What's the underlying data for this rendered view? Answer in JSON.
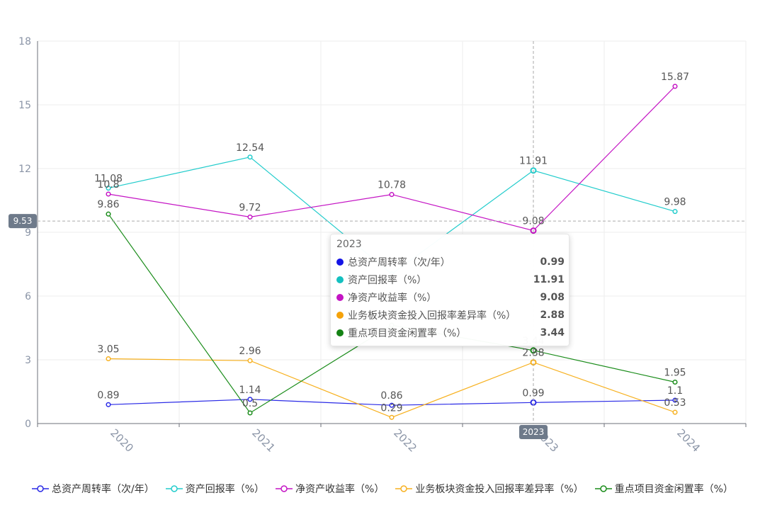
{
  "chart_data": {
    "type": "line",
    "x": [
      "2020",
      "2021",
      "2022",
      "2023",
      "2024"
    ],
    "ylim": [
      0,
      18
    ],
    "yticks": [
      0,
      3,
      6,
      9,
      12,
      15,
      18
    ],
    "grid": true,
    "legend_position": "bottom",
    "series": [
      {
        "name": "总资产周转率（次/年）",
        "color": "#2a2ae6",
        "values": [
          0.89,
          1.14,
          0.86,
          0.99,
          1.1
        ]
      },
      {
        "name": "资产回报率（%）",
        "color": "#22cccc",
        "values": [
          11.08,
          12.54,
          7.04,
          11.91,
          9.98
        ]
      },
      {
        "name": "净资产收益率（%）",
        "color": "#c414c4",
        "values": [
          10.8,
          9.72,
          10.78,
          9.08,
          15.87
        ]
      },
      {
        "name": "业务板块资金投入回报率差异率（%）",
        "color": "#f7b120",
        "values": [
          3.05,
          2.96,
          0.29,
          2.88,
          0.53
        ]
      },
      {
        "name": "重点项目资金闲置率（%）",
        "color": "#1a8c1a",
        "values": [
          9.86,
          0.5,
          4.63,
          3.44,
          1.95
        ]
      }
    ],
    "hidden_labels": [
      [
        1,
        2
      ]
    ],
    "crosshair": {
      "x_label": "2023",
      "y_label": "9.53",
      "y_value": 9.53
    }
  },
  "tooltip": {
    "title": "2023",
    "rows": [
      {
        "name": "总资产周转率（次/年）",
        "value": "0.99",
        "color": "#1414e6"
      },
      {
        "name": "资产回报率（%）",
        "value": "11.91",
        "color": "#14c0c0"
      },
      {
        "name": "净资产收益率（%）",
        "value": "9.08",
        "color": "#c414c4"
      },
      {
        "name": "业务板块资金投入回报率差异率（%）",
        "value": "2.88",
        "color": "#f5a20a"
      },
      {
        "name": "重点项目资金闲置率（%）",
        "value": "3.44",
        "color": "#148214"
      }
    ]
  },
  "legend": [
    {
      "label": "总资产周转率（次/年）",
      "color": "#2a2ae6"
    },
    {
      "label": "资产回报率（%）",
      "color": "#22cccc"
    },
    {
      "label": "净资产收益率（%）",
      "color": "#c414c4"
    },
    {
      "label": "业务板块资金投入回报率差异率（%）",
      "color": "#f7b120"
    },
    {
      "label": "重点项目资金闲置率（%）",
      "color": "#1a8c1a"
    }
  ]
}
